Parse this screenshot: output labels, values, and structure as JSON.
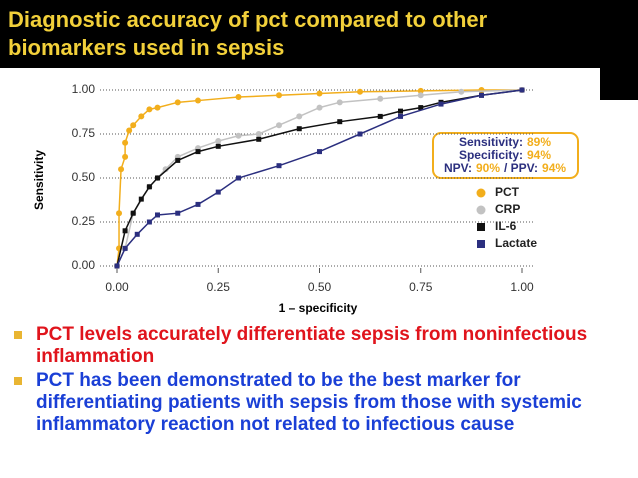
{
  "header": {
    "title": "Diagnostic accuracy of pct compared to other biomarkers used in sepsis"
  },
  "chart_data": {
    "type": "line",
    "xlabel": "1 – specificity",
    "ylabel": "Sensitivity",
    "xlim": [
      0,
      1
    ],
    "ylim": [
      0,
      1
    ],
    "xticks": [
      {
        "value": 0,
        "label": "0.00"
      },
      {
        "value": 0.25,
        "label": "0.25"
      },
      {
        "value": 0.5,
        "label": "0.50"
      },
      {
        "value": 0.75,
        "label": "0.75"
      },
      {
        "value": 1,
        "label": "1.00"
      }
    ],
    "yticks": [
      {
        "value": 0,
        "label": "0.00"
      },
      {
        "value": 0.25,
        "label": "0.25"
      },
      {
        "value": 0.5,
        "label": "0.50"
      },
      {
        "value": 0.75,
        "label": "0.75"
      },
      {
        "value": 1,
        "label": "1.00"
      }
    ],
    "grid": true,
    "legend": "right",
    "annotation": [
      [
        "Sensitivity:",
        "89%"
      ],
      [
        "Specificity:",
        "94%"
      ],
      [
        "NPV:",
        "90%",
        "/ PPV:",
        "94%"
      ]
    ],
    "series": [
      {
        "name": "PCT",
        "color": "#f2ae1c",
        "marker": "circle",
        "x": [
          0,
          0.005,
          0.005,
          0.01,
          0.02,
          0.02,
          0.03,
          0.04,
          0.06,
          0.08,
          0.1,
          0.15,
          0.2,
          0.3,
          0.4,
          0.5,
          0.6,
          0.75,
          0.9,
          1
        ],
        "values": [
          0,
          0.1,
          0.3,
          0.55,
          0.62,
          0.7,
          0.77,
          0.8,
          0.85,
          0.89,
          0.9,
          0.93,
          0.94,
          0.96,
          0.97,
          0.98,
          0.99,
          0.995,
          1,
          1
        ]
      },
      {
        "name": "CRP",
        "color": "#c2c2c2",
        "marker": "circle",
        "x": [
          0,
          0.02,
          0.04,
          0.08,
          0.1,
          0.12,
          0.15,
          0.2,
          0.25,
          0.3,
          0.35,
          0.4,
          0.45,
          0.5,
          0.55,
          0.65,
          0.75,
          0.85,
          1
        ],
        "values": [
          0,
          0.1,
          0.3,
          0.45,
          0.5,
          0.55,
          0.62,
          0.67,
          0.71,
          0.74,
          0.75,
          0.8,
          0.85,
          0.9,
          0.93,
          0.95,
          0.97,
          0.99,
          1
        ]
      },
      {
        "name": "IL-6",
        "color": "#111111",
        "marker": "square",
        "x": [
          0,
          0.02,
          0.04,
          0.06,
          0.08,
          0.1,
          0.15,
          0.2,
          0.25,
          0.35,
          0.45,
          0.55,
          0.65,
          0.7,
          0.75,
          0.8,
          0.9,
          1
        ],
        "values": [
          0,
          0.2,
          0.3,
          0.38,
          0.45,
          0.5,
          0.6,
          0.65,
          0.68,
          0.72,
          0.78,
          0.82,
          0.85,
          0.88,
          0.9,
          0.93,
          0.97,
          1
        ]
      },
      {
        "name": "Lactate",
        "color": "#2b2f7f",
        "marker": "square",
        "x": [
          0,
          0.02,
          0.05,
          0.08,
          0.1,
          0.15,
          0.2,
          0.25,
          0.3,
          0.4,
          0.5,
          0.6,
          0.7,
          0.8,
          0.9,
          1
        ],
        "values": [
          0,
          0.1,
          0.18,
          0.25,
          0.29,
          0.3,
          0.35,
          0.42,
          0.5,
          0.57,
          0.65,
          0.75,
          0.85,
          0.92,
          0.97,
          1
        ]
      }
    ]
  },
  "bullets": [
    "PCT levels accurately differentiate sepsis from noninfectious inflammation",
    "PCT has been demonstrated to be the best marker for differentiating patients with sepsis from those with systemic inflammatory reaction not related to infectious cause"
  ]
}
